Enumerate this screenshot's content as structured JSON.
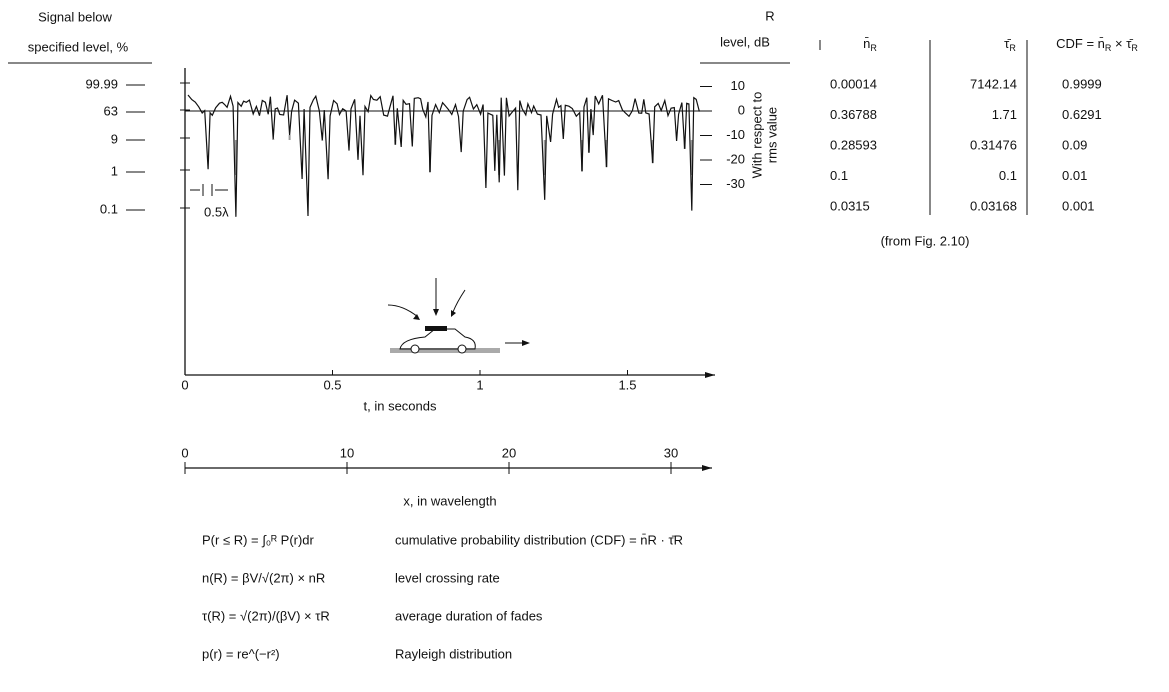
{
  "left_axis": {
    "title": [
      "Signal below",
      "specified level, %"
    ],
    "ticks": [
      "99.99",
      "63",
      "9",
      "1",
      "0.1"
    ]
  },
  "right_axis": {
    "title": [
      "R",
      "level, dB"
    ],
    "ticks": [
      10,
      0,
      -10,
      -20,
      -30
    ],
    "note": [
      "With respect to",
      "rms value"
    ]
  },
  "spacing_label": "0.5λ",
  "time_axis": {
    "ticks": [
      0,
      0.5,
      1,
      1.5
    ],
    "label": "t, in seconds"
  },
  "wavelength_axis": {
    "ticks": [
      0,
      10,
      20,
      30
    ],
    "label": "x, in wavelength"
  },
  "table": {
    "headers": [
      [
        "n̄",
        "R"
      ],
      [
        "τ̄",
        "R"
      ],
      [
        "CDF = n̄",
        "R",
        " × τ̄",
        "R"
      ]
    ],
    "rows": [
      [
        "0.00014",
        "7142.14",
        "0.9999"
      ],
      [
        "0.36788",
        "1.71",
        "0.6291"
      ],
      [
        "0.28593",
        "0.31476",
        "0.09"
      ],
      [
        "0.1",
        "0.1",
        "0.01"
      ],
      [
        "0.0315",
        "0.03168",
        "0.001"
      ]
    ],
    "source": "(from Fig. 2.10)"
  },
  "formulas": [
    {
      "formula": "P(r ≤ R) = ∫₀ᴿ P(r)dr",
      "description": "cumulative probability distribution (CDF) = n̄R · τ̄R"
    },
    {
      "formula": "n(R) = βV/√(2π) × nR",
      "description": "level crossing rate"
    },
    {
      "formula": "τ(R) = √(2π)/(βV) × τR",
      "description": "average duration of fades"
    },
    {
      "formula": "p(r) = re^(−r²)",
      "description": "Rayleigh distribution"
    }
  ]
}
